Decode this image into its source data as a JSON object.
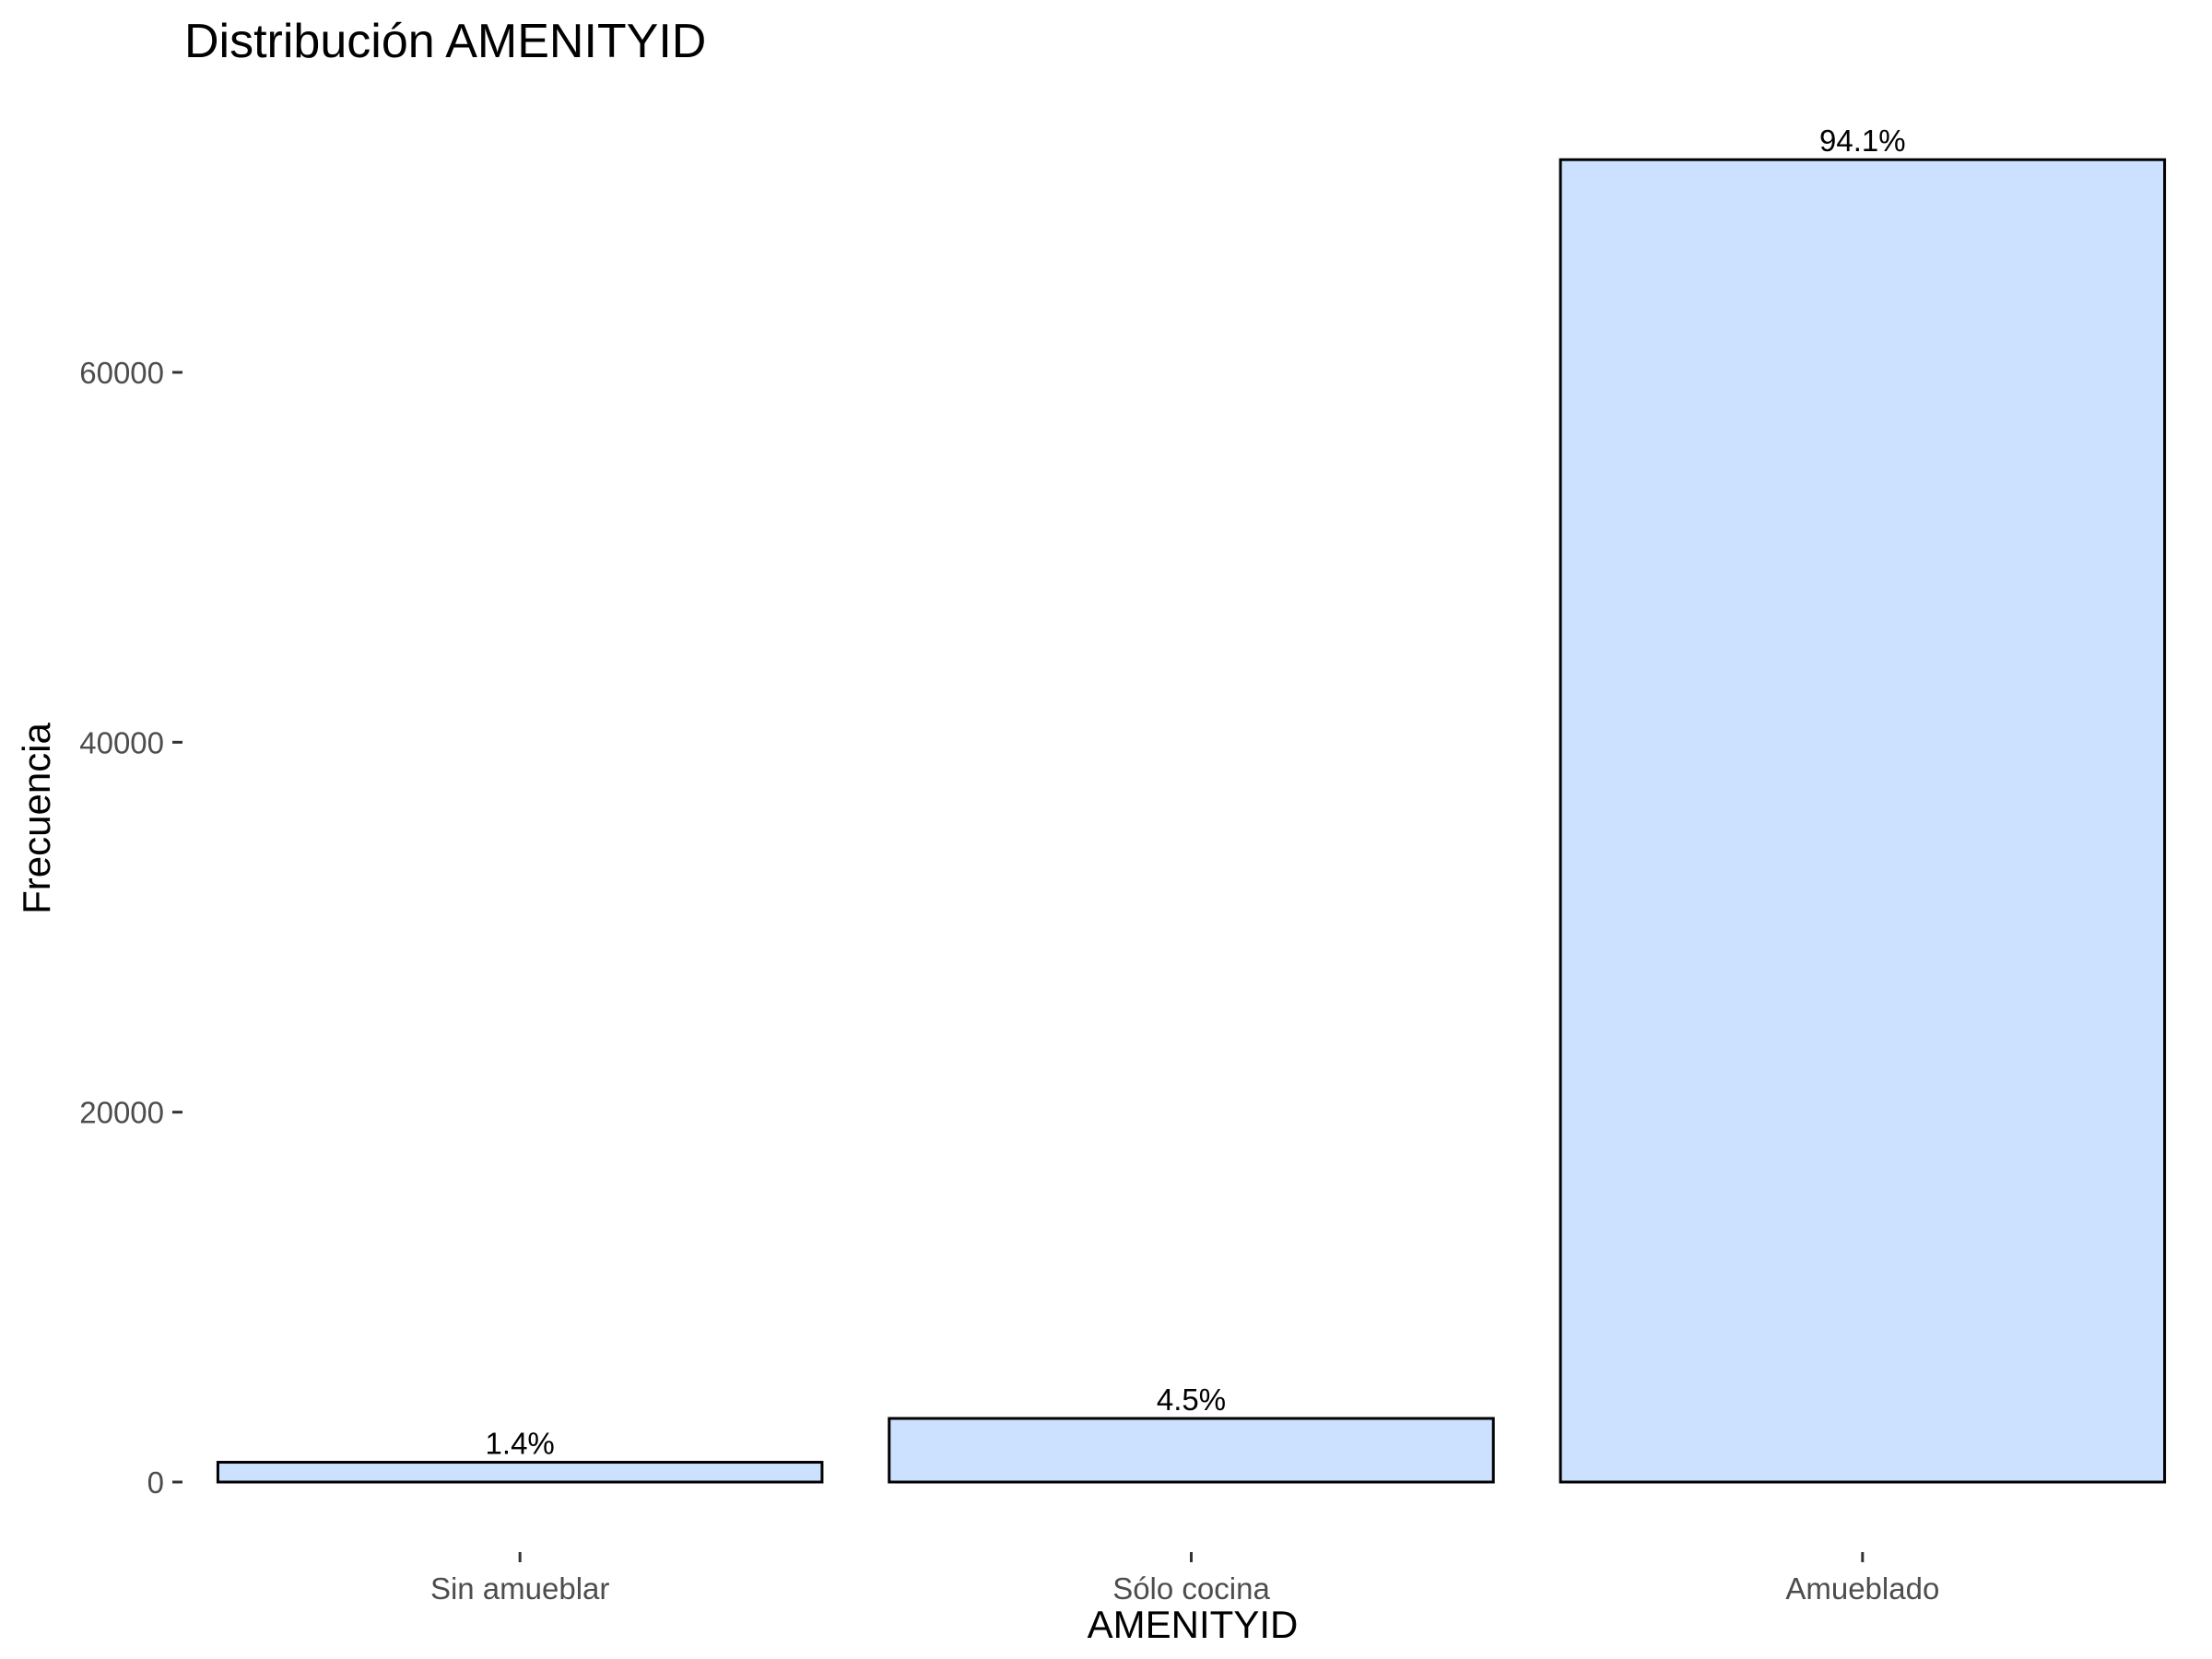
{
  "chart_data": {
    "type": "bar",
    "title": "Distribución AMENITYID",
    "xlabel": "AMENITYID",
    "ylabel": "Frecuencia",
    "categories": [
      "Sin amueblar",
      "Sólo cocina",
      "Amueblado"
    ],
    "values": [
      1070,
      3440,
      71500
    ],
    "data_labels": [
      "1.4%",
      "4.5%",
      "94.1%"
    ],
    "ylim": [
      0,
      75000
    ],
    "yticks": [
      0,
      20000,
      40000,
      60000
    ],
    "ytick_labels": [
      "0",
      "20000",
      "40000",
      "60000"
    ],
    "grid": false,
    "legend": "none",
    "bar_fill": "#cce0ff",
    "bar_stroke": "#000000"
  }
}
